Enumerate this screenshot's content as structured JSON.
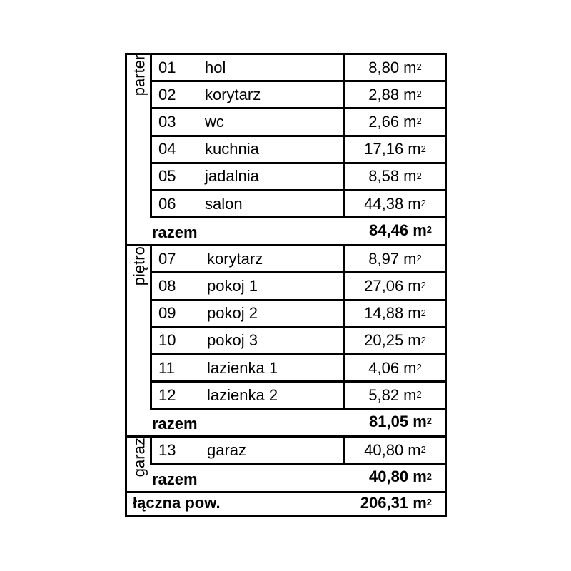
{
  "unit": "m²",
  "sections": [
    {
      "label": "parter",
      "rows": [
        {
          "num": "01",
          "name": "hol",
          "area": "8,80 m²"
        },
        {
          "num": "02",
          "name": "korytarz",
          "area": "2,88 m²"
        },
        {
          "num": "03",
          "name": "wc",
          "area": "2,66 m²"
        },
        {
          "num": "04",
          "name": "kuchnia",
          "area": "17,16 m²"
        },
        {
          "num": "05",
          "name": "jadalnia",
          "area": "8,58 m²"
        },
        {
          "num": "06",
          "name": "salon",
          "area": "44,38 m²"
        }
      ],
      "total_label": "razem",
      "total": "84,46 m²"
    },
    {
      "label": "piętro",
      "rows": [
        {
          "num": "07",
          "name": "korytarz",
          "area": "8,97 m²"
        },
        {
          "num": "08",
          "name": "pokoj 1",
          "area": "27,06 m²"
        },
        {
          "num": "09",
          "name": "pokoj 2",
          "area": "14,88 m²"
        },
        {
          "num": "10",
          "name": "pokoj 3",
          "area": "20,25 m²"
        },
        {
          "num": "11",
          "name": "lazienka 1",
          "area": "4,06 m²"
        },
        {
          "num": "12",
          "name": "lazienka 2",
          "area": "5,82 m²"
        }
      ],
      "total_label": "razem",
      "total": "81,05 m²"
    },
    {
      "label": "garaz",
      "rows": [
        {
          "num": "13",
          "name": "garaz",
          "area": "40,80 m²"
        }
      ],
      "total_label": "razem",
      "total": "40,80 m²"
    }
  ],
  "grand_total": {
    "label": "łączna pow.",
    "value": "206,31 m²"
  }
}
